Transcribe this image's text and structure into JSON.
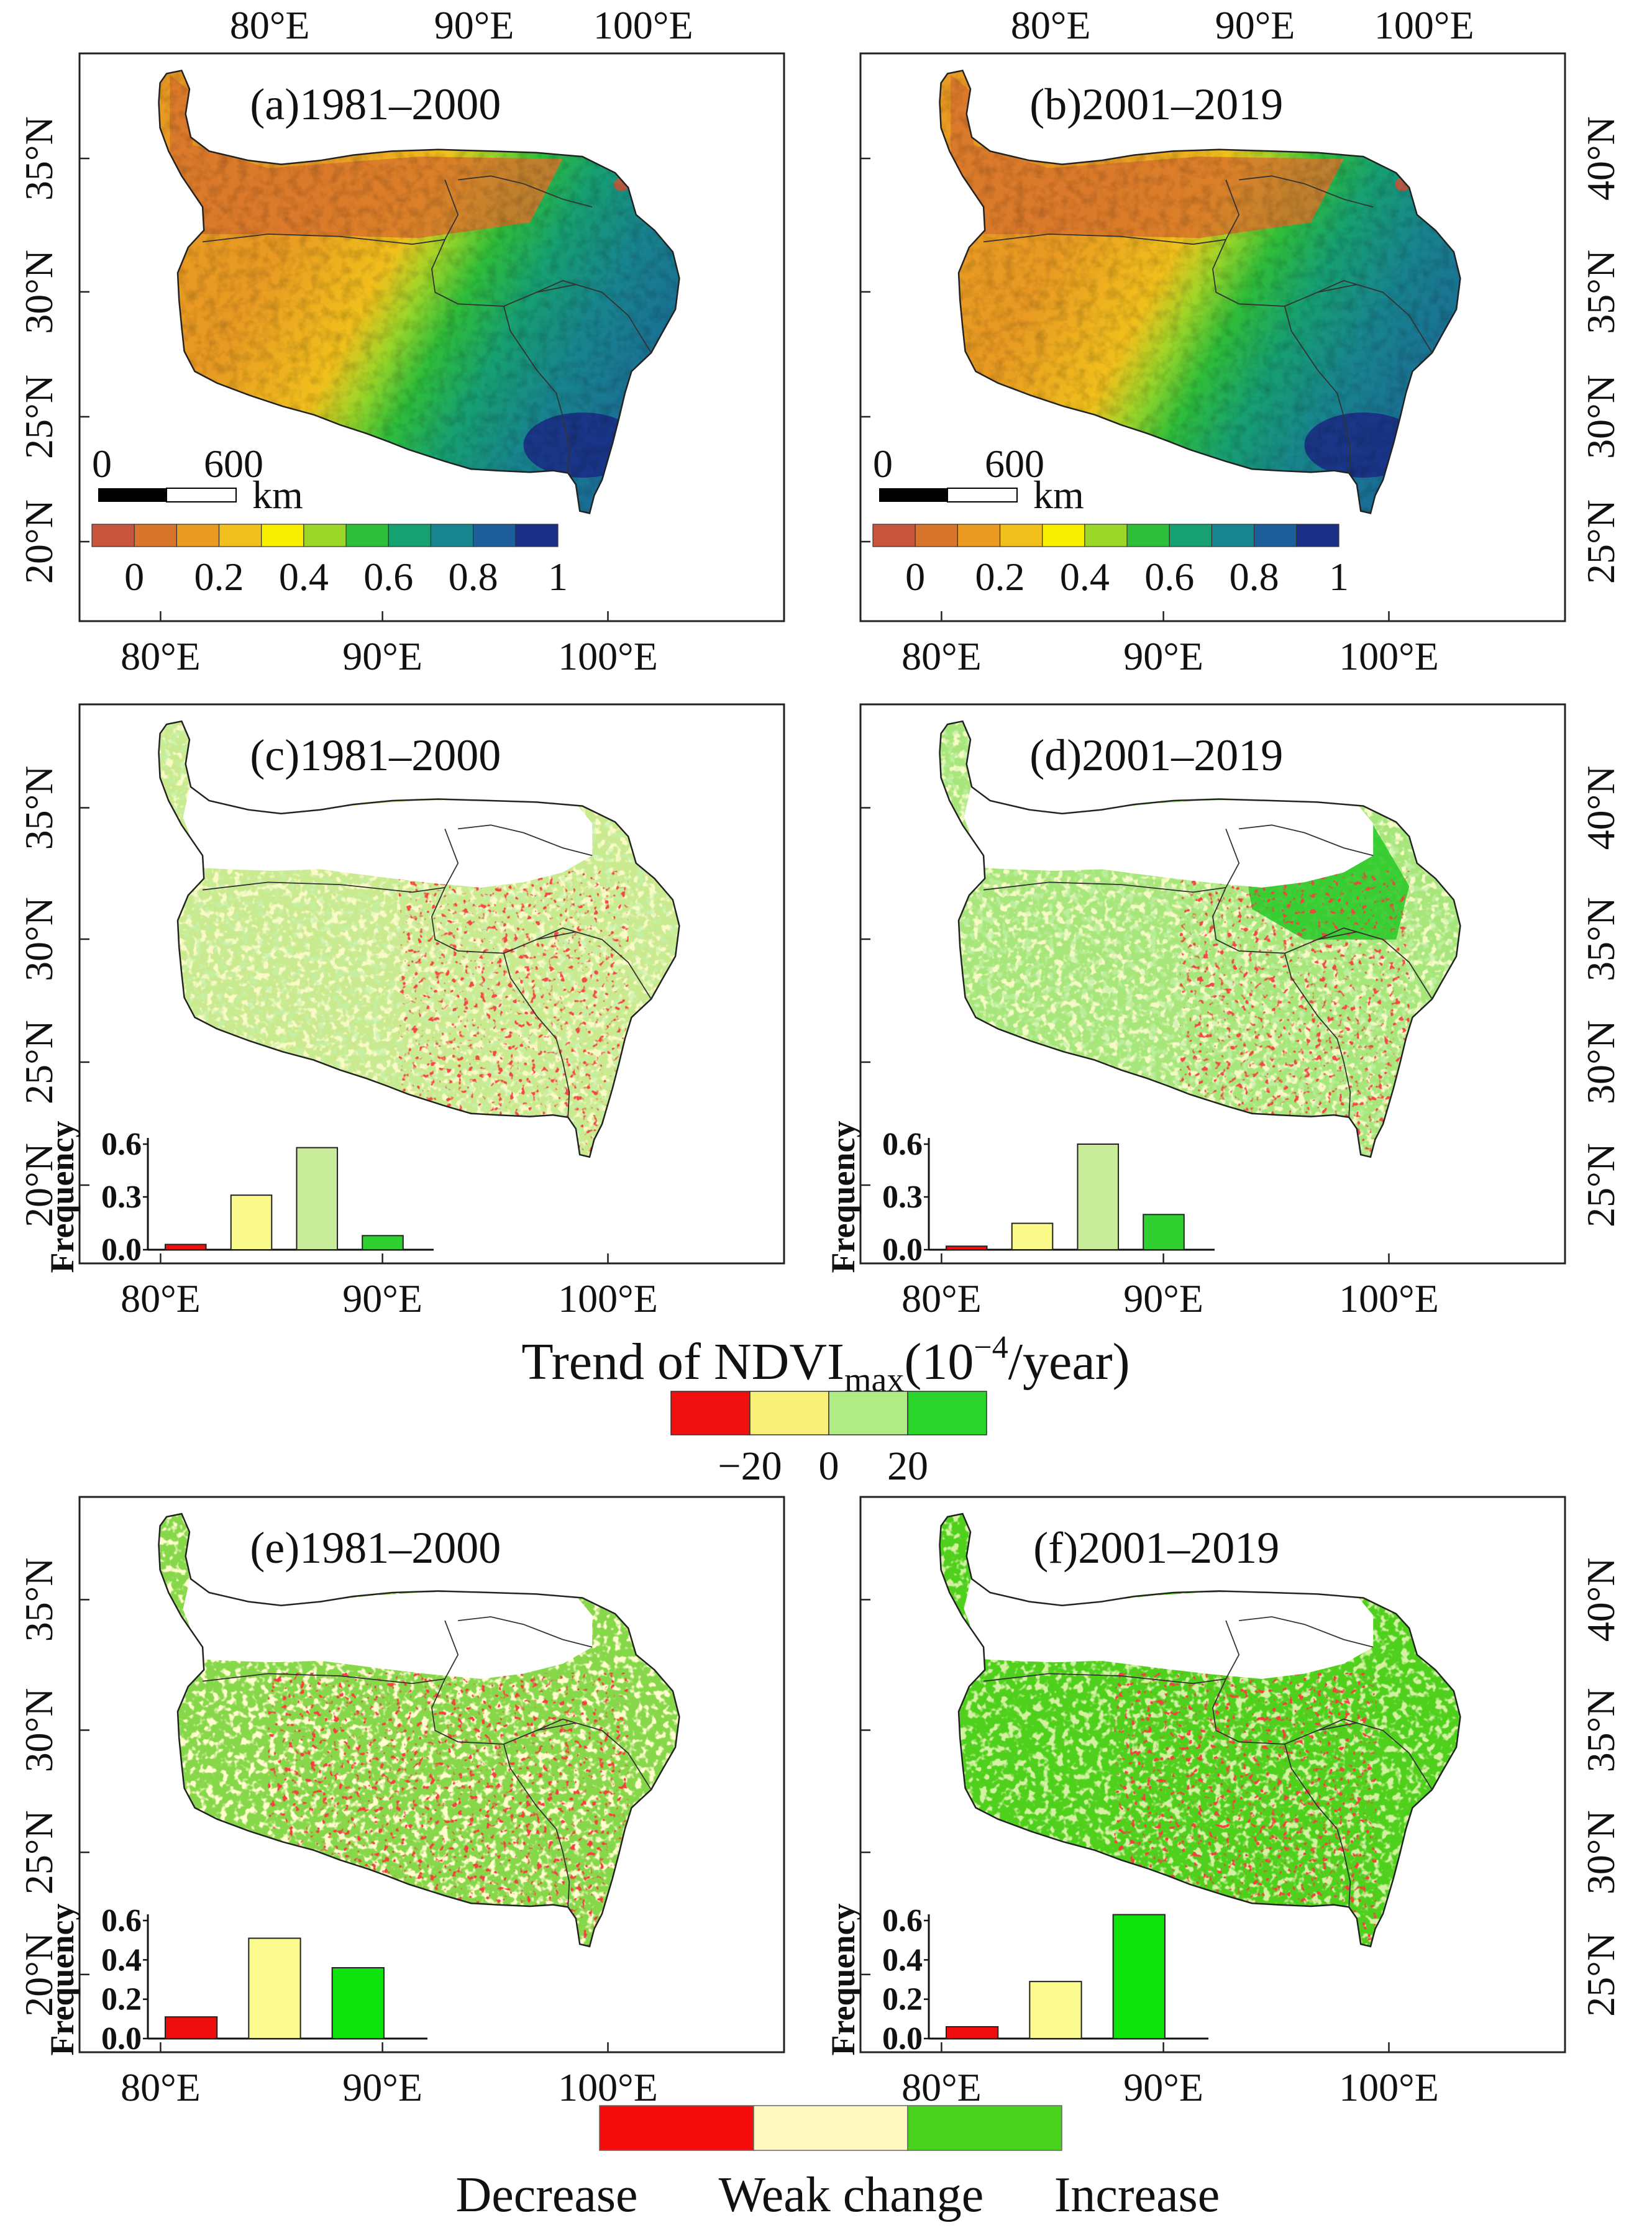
{
  "figure": {
    "panels": [
      {
        "id": "a",
        "title": "(a)1981–2000",
        "kind": "ndvi",
        "colorbar_labels": [
          "0",
          "0.2",
          "0.4",
          "0.6",
          "0.8",
          "1"
        ],
        "scale_labels": [
          "0",
          "600"
        ],
        "scale_unit": "km"
      },
      {
        "id": "b",
        "title": "(b)2001–2019",
        "kind": "ndvi",
        "colorbar_labels": [
          "0",
          "0.2",
          "0.4",
          "0.6",
          "0.8",
          "1"
        ],
        "scale_labels": [
          "0",
          "600"
        ],
        "scale_unit": "km"
      },
      {
        "id": "c",
        "title": "(c)1981–2000",
        "kind": "trend",
        "inset": {
          "ylabel": "Frequency",
          "yticks": [
            "0.0",
            "0.3",
            "0.6"
          ]
        }
      },
      {
        "id": "d",
        "title": "(d)2001–2019",
        "kind": "trend",
        "inset": {
          "ylabel": "Frequency",
          "yticks": [
            "0.0",
            "0.3",
            "0.6"
          ]
        }
      },
      {
        "id": "e",
        "title": "(e)1981–2000",
        "kind": "change",
        "inset": {
          "ylabel": "Frequency",
          "yticks": [
            "0.0",
            "0.2",
            "0.4",
            "0.6"
          ]
        }
      },
      {
        "id": "f",
        "title": "(f)2001–2019",
        "kind": "change",
        "inset": {
          "ylabel": "Frequency",
          "yticks": [
            "0.0",
            "0.2",
            "0.4",
            "0.6"
          ]
        }
      }
    ],
    "lon_labels": [
      "80°E",
      "90°E",
      "100°E"
    ],
    "lat_labels_left": [
      "35°N",
      "30°N",
      "25°N",
      "20°N"
    ],
    "lat_labels_right": [
      "40°N",
      "35°N",
      "30°N",
      "25°N"
    ],
    "ndvi_palette": [
      "#c8553d",
      "#d8742c",
      "#e99a22",
      "#f1c01c",
      "#f8f000",
      "#9bd629",
      "#2fbe3a",
      "#17a071",
      "#18848e",
      "#1c5f9a",
      "#1b2f86"
    ],
    "trend_legend": {
      "title_main": "Trend of NDVI",
      "title_sub": "max",
      "title_pre": "(10",
      "title_sup": "−4",
      "title_post": "/year)",
      "labels": [
        "−20",
        "0",
        "20"
      ],
      "colors": [
        "#f11010",
        "#f8f078",
        "#b0ec86",
        "#2bd52b"
      ]
    },
    "change_legend": {
      "labels": [
        "Decrease",
        "Weak change",
        "Increase"
      ],
      "colors": [
        "#f30c0c",
        "#fff8c0",
        "#48d21b"
      ]
    }
  },
  "chart_data": [
    {
      "type": "bar",
      "panel": "c",
      "title": "(c)1981–2000",
      "categories": [
        "<−20",
        "−20–0",
        "0–20",
        ">20"
      ],
      "values": [
        0.03,
        0.31,
        0.58,
        0.08
      ],
      "colors": [
        "#ee1010",
        "#fafa8a",
        "#c8ec9a",
        "#30d030"
      ],
      "ylabel": "Frequency",
      "ylim": [
        0,
        0.6
      ],
      "yticks": [
        0.0,
        0.3,
        0.6
      ]
    },
    {
      "type": "bar",
      "panel": "d",
      "title": "(d)2001–2019",
      "categories": [
        "<−20",
        "−20–0",
        "0–20",
        ">20"
      ],
      "values": [
        0.02,
        0.15,
        0.6,
        0.2
      ],
      "colors": [
        "#ee1010",
        "#fafa8a",
        "#c8ec9a",
        "#30d030"
      ],
      "ylabel": "Frequency",
      "ylim": [
        0,
        0.6
      ],
      "yticks": [
        0.0,
        0.3,
        0.6
      ]
    },
    {
      "type": "bar",
      "panel": "e",
      "title": "(e)1981–2000",
      "categories": [
        "Decrease",
        "Weak change",
        "Increase"
      ],
      "values": [
        0.11,
        0.51,
        0.36
      ],
      "colors": [
        "#f00d0d",
        "#fbfb90",
        "#0ee30e"
      ],
      "ylabel": "Frequency",
      "ylim": [
        0,
        0.6
      ],
      "yticks": [
        0.0,
        0.2,
        0.4,
        0.6
      ]
    },
    {
      "type": "bar",
      "panel": "f",
      "title": "(f)2001–2019",
      "categories": [
        "Decrease",
        "Weak change",
        "Increase"
      ],
      "values": [
        0.06,
        0.29,
        0.63
      ],
      "colors": [
        "#f00d0d",
        "#fbfb90",
        "#0ee30e"
      ],
      "ylabel": "Frequency",
      "ylim": [
        0,
        0.6
      ],
      "yticks": [
        0.0,
        0.2,
        0.4,
        0.6
      ]
    }
  ]
}
